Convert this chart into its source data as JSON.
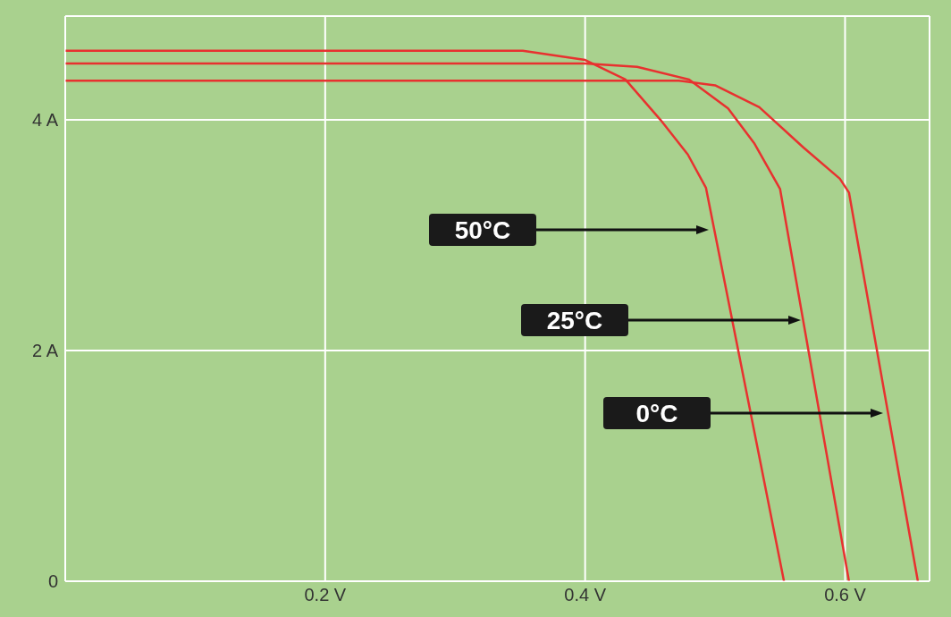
{
  "chart_data": {
    "type": "line",
    "xlim": [
      0,
      0.665
    ],
    "ylim": [
      0,
      4.9
    ],
    "xticks": [
      {
        "value": 0,
        "label": null
      },
      {
        "value": 0.2,
        "label": "0.2 V"
      },
      {
        "value": 0.4,
        "label": "0.4 V"
      },
      {
        "value": 0.6,
        "label": "0.6 V"
      }
    ],
    "yticks": [
      0,
      {
        "value": 2,
        "label": "2 A"
      },
      {
        "value": 4,
        "label": "4 A"
      }
    ],
    "grid": true,
    "legend": false,
    "marker": "none",
    "line_style": "solid",
    "series": [
      {
        "color": "#e8312f",
        "x": [
          0,
          0.352,
          0.4,
          0.431,
          0.458,
          0.479,
          0.493,
          0.553
        ],
        "values": [
          4.6,
          4.6,
          4.52,
          4.35,
          4.0,
          3.7,
          3.41,
          0
        ]
      },
      {
        "color": "#e8312f",
        "x": [
          0,
          0.4,
          0.44,
          0.48,
          0.51,
          0.53,
          0.55,
          0.603
        ],
        "values": [
          4.49,
          4.49,
          4.46,
          4.35,
          4.1,
          3.8,
          3.4,
          0
        ]
      },
      {
        "color": "#e8312f",
        "x": [
          0,
          0.472,
          0.5,
          0.534,
          0.568,
          0.596,
          0.603,
          0.656
        ],
        "values": [
          4.34,
          4.34,
          4.3,
          4.11,
          3.76,
          3.49,
          3.37,
          0
        ]
      }
    ],
    "annotations": [
      "50°C",
      "25°C",
      "0°C"
    ]
  }
}
